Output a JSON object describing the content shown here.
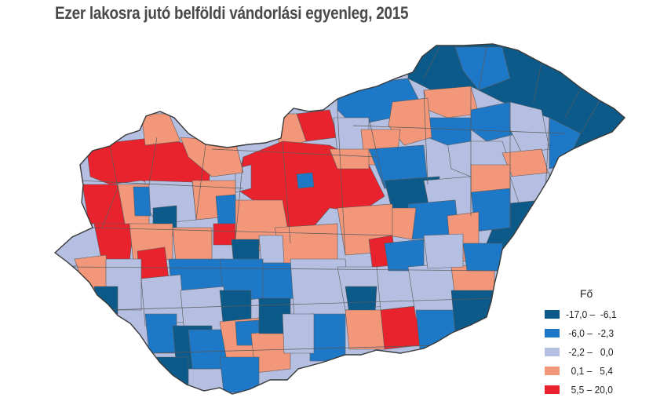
{
  "title": "Ezer lakosra jutó belföldi vándorlási egyenleg, 2015",
  "legend": {
    "title": "Fő",
    "classes": [
      {
        "label": "-17,0 –  -6,1",
        "color": "#0c5a8a"
      },
      {
        "label": " -6,0 –  -2,3",
        "color": "#1e78c8"
      },
      {
        "label": " -2,2 –   0,0",
        "color": "#b4bfe2"
      },
      {
        "label": "  0,1 –   5,4",
        "color": "#f2977a"
      },
      {
        "label": "  5,5 – 20,0",
        "color": "#e8232d"
      }
    ]
  },
  "colors": {
    "border": "#5a5a5a",
    "outline": "#3a3a3a"
  }
}
